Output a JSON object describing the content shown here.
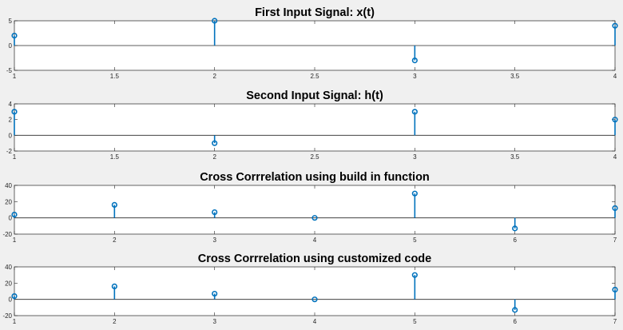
{
  "figure": {
    "background": "#f0f0f0",
    "stem_color": "#0072bd"
  },
  "chart_data": [
    {
      "type": "stem",
      "title": "First Input Signal: x(t)",
      "x": [
        1,
        2,
        3,
        4
      ],
      "y": [
        2,
        5,
        -3,
        4
      ],
      "xlim": [
        1,
        4
      ],
      "ylim": [
        -5,
        5
      ],
      "xticks": [
        1,
        1.5,
        2,
        2.5,
        3,
        3.5,
        4
      ],
      "xtick_labels": [
        "1",
        "1.5",
        "2",
        "2.5",
        "3",
        "3.5",
        "4"
      ],
      "yticks": [
        -5,
        0,
        5
      ],
      "ytick_labels": [
        "-5",
        "0",
        "5"
      ]
    },
    {
      "type": "stem",
      "title": "Second Input Signal: h(t)",
      "x": [
        1,
        2,
        3,
        4
      ],
      "y": [
        3,
        -1,
        3,
        2
      ],
      "xlim": [
        1,
        4
      ],
      "ylim": [
        -2,
        4
      ],
      "xticks": [
        1,
        1.5,
        2,
        2.5,
        3,
        3.5,
        4
      ],
      "xtick_labels": [
        "1",
        "1.5",
        "2",
        "2.5",
        "3",
        "3.5",
        "4"
      ],
      "yticks": [
        -2,
        0,
        2,
        4
      ],
      "ytick_labels": [
        "-2",
        "0",
        "2",
        "4"
      ]
    },
    {
      "type": "stem",
      "title": "Cross Corrrelation using build in function",
      "x": [
        1,
        2,
        3,
        4,
        5,
        6,
        7
      ],
      "y": [
        4,
        16,
        7,
        0,
        30,
        -13,
        12
      ],
      "xlim": [
        1,
        7
      ],
      "ylim": [
        -20,
        40
      ],
      "xticks": [
        1,
        2,
        3,
        4,
        5,
        6,
        7
      ],
      "xtick_labels": [
        "1",
        "2",
        "3",
        "4",
        "5",
        "6",
        "7"
      ],
      "yticks": [
        -20,
        0,
        20,
        40
      ],
      "ytick_labels": [
        "-20",
        "0",
        "20",
        "40"
      ]
    },
    {
      "type": "stem",
      "title": "Cross Corrrelation using customized code",
      "x": [
        1,
        2,
        3,
        4,
        5,
        6,
        7
      ],
      "y": [
        4,
        16,
        7,
        0,
        30,
        -13,
        12
      ],
      "xlim": [
        1,
        7
      ],
      "ylim": [
        -20,
        40
      ],
      "xticks": [
        1,
        2,
        3,
        4,
        5,
        6,
        7
      ],
      "xtick_labels": [
        "1",
        "2",
        "3",
        "4",
        "5",
        "6",
        "7"
      ],
      "yticks": [
        -20,
        0,
        20,
        40
      ],
      "ytick_labels": [
        "-20",
        "0",
        "20",
        "40"
      ]
    }
  ]
}
